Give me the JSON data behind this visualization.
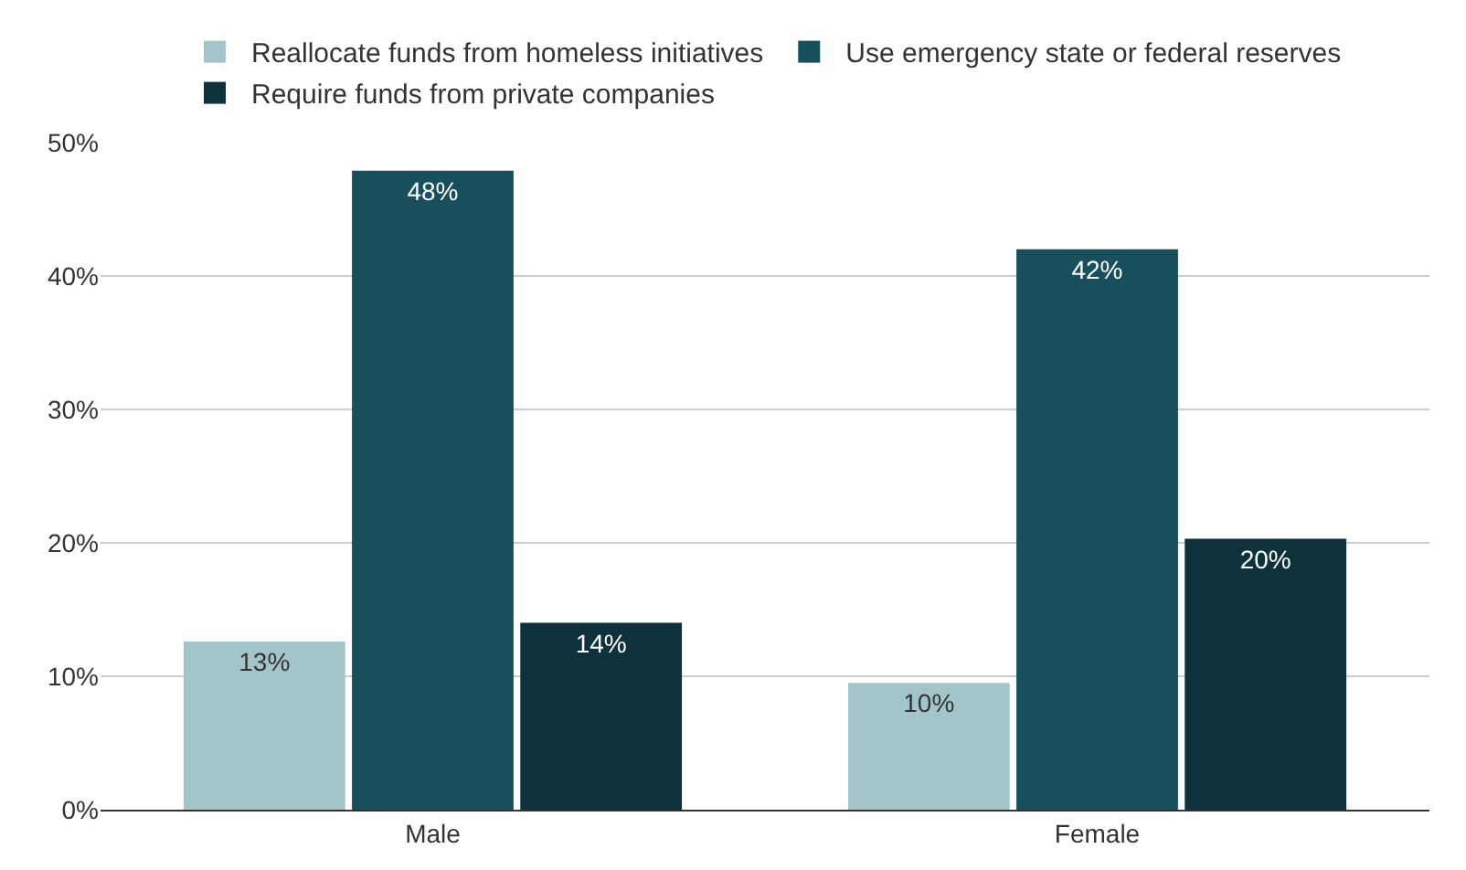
{
  "chart_data": {
    "type": "bar",
    "categories": [
      "Male",
      "Female"
    ],
    "series": [
      {
        "name": "Reallocate funds from homeless initiatives",
        "color": "#a3c4c9",
        "values": [
          12.6,
          9.5
        ],
        "value_labels": [
          "13%",
          "10%"
        ]
      },
      {
        "name": "Use emergency state or federal reserves",
        "color": "#174f5c",
        "values": [
          47.9,
          42.0
        ],
        "value_labels": [
          "48%",
          "42%"
        ]
      },
      {
        "name": "Require funds from private companies",
        "color": "#0d323b",
        "values": [
          14.0,
          20.3
        ],
        "value_labels": [
          "14%",
          "20%"
        ]
      }
    ],
    "ylim": [
      0,
      50
    ],
    "yticks": [
      {
        "value": 0,
        "label": "0%"
      },
      {
        "value": 10,
        "label": "10%"
      },
      {
        "value": 20,
        "label": "20%"
      },
      {
        "value": 30,
        "label": "30%"
      },
      {
        "value": 40,
        "label": "40%"
      },
      {
        "value": 50,
        "label": "50%"
      }
    ],
    "grid": "y",
    "legend": "top"
  }
}
